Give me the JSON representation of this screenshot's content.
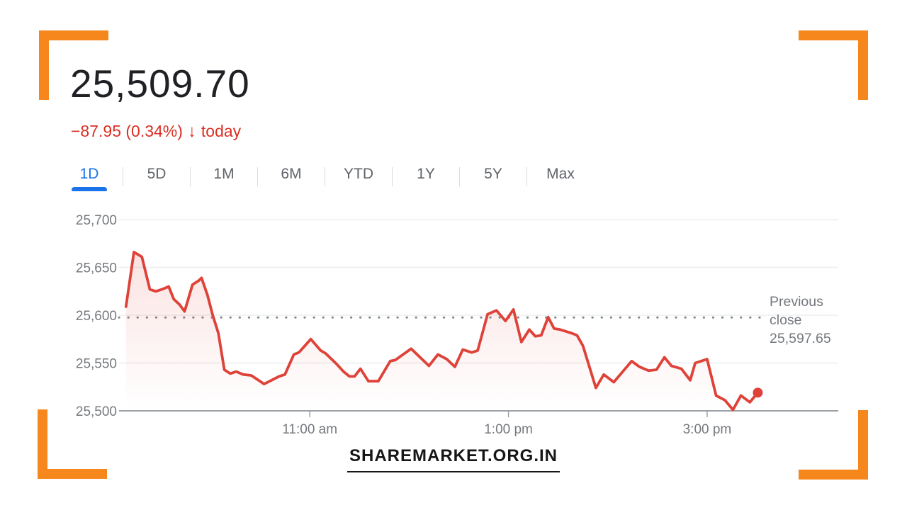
{
  "page": {
    "watermark": "SHAREMARKET.ORG.IN"
  },
  "colors": {
    "frame_orange": "#F6871D",
    "accent_blue": "#1a73e8",
    "negative_red": "#d93025",
    "line_red": "#de4238",
    "text_dark": "#202124",
    "text_gray": "#5f6368",
    "axis_label_gray": "#75797e",
    "grid_light": "#ecedef",
    "axis_line_gray": "#9aa0a6",
    "dotted_line_gray": "#85898d",
    "tab_separator": "#dadce0"
  },
  "quote": {
    "price": "25,509.70",
    "change": "−87.95 (0.34%)",
    "direction_icon": "↓",
    "change_period": "today"
  },
  "range_tabs": {
    "active": "1D",
    "items": [
      "1D",
      "5D",
      "1M",
      "6M",
      "YTD",
      "1Y",
      "5Y",
      "Max"
    ]
  },
  "chart_data": {
    "type": "line",
    "title": "Intraday price (1D)",
    "x_range_hours": [
      9.08,
      16.32
    ],
    "y_range": [
      25500,
      25700
    ],
    "grid": true,
    "legend": "none",
    "end_dot": true,
    "y_ticks": [
      {
        "value": 25700,
        "label": "25,700"
      },
      {
        "value": 25650,
        "label": "25,650"
      },
      {
        "value": 25600,
        "label": "25,600"
      },
      {
        "value": 25550,
        "label": "25,550"
      },
      {
        "value": 25500,
        "label": "25,500"
      }
    ],
    "x_ticks": [
      {
        "hour": 11,
        "label": "11:00 am"
      },
      {
        "hour": 13,
        "label": "1:00 pm"
      },
      {
        "hour": 15,
        "label": "3:00 pm"
      }
    ],
    "previous_close": {
      "value": 25597.65,
      "label_lines": [
        "Previous",
        "close",
        "25,597.65"
      ]
    },
    "series": [
      {
        "name": "price",
        "color": "#de4238",
        "points": [
          [
            9.15,
            25609
          ],
          [
            9.23,
            25666
          ],
          [
            9.31,
            25661
          ],
          [
            9.39,
            25627
          ],
          [
            9.45,
            25625
          ],
          [
            9.51,
            25627
          ],
          [
            9.58,
            25630
          ],
          [
            9.63,
            25617
          ],
          [
            9.69,
            25611
          ],
          [
            9.74,
            25604
          ],
          [
            9.82,
            25632
          ],
          [
            9.88,
            25636
          ],
          [
            9.91,
            25639
          ],
          [
            9.97,
            25621
          ],
          [
            10.02,
            25601
          ],
          [
            10.08,
            25581
          ],
          [
            10.14,
            25543
          ],
          [
            10.2,
            25539
          ],
          [
            10.26,
            25541
          ],
          [
            10.33,
            25538
          ],
          [
            10.41,
            25537
          ],
          [
            10.47,
            25533
          ],
          [
            10.54,
            25528
          ],
          [
            10.69,
            25536
          ],
          [
            10.75,
            25538
          ],
          [
            10.84,
            25559
          ],
          [
            10.89,
            25561
          ],
          [
            11.01,
            25575
          ],
          [
            11.11,
            25563
          ],
          [
            11.16,
            25560
          ],
          [
            11.27,
            25549
          ],
          [
            11.34,
            25541
          ],
          [
            11.4,
            25536
          ],
          [
            11.45,
            25536
          ],
          [
            11.51,
            25544
          ],
          [
            11.59,
            25531
          ],
          [
            11.69,
            25531
          ],
          [
            11.81,
            25552
          ],
          [
            11.86,
            25553
          ],
          [
            12.02,
            25565
          ],
          [
            12.09,
            25558
          ],
          [
            12.2,
            25547
          ],
          [
            12.29,
            25559
          ],
          [
            12.38,
            25554
          ],
          [
            12.46,
            25546
          ],
          [
            12.54,
            25564
          ],
          [
            12.63,
            25561
          ],
          [
            12.69,
            25563
          ],
          [
            12.79,
            25601
          ],
          [
            12.88,
            25605
          ],
          [
            12.97,
            25594
          ],
          [
            13.05,
            25606
          ],
          [
            13.13,
            25572
          ],
          [
            13.21,
            25585
          ],
          [
            13.27,
            25578
          ],
          [
            13.33,
            25579
          ],
          [
            13.4,
            25598
          ],
          [
            13.46,
            25586
          ],
          [
            13.52,
            25585
          ],
          [
            13.64,
            25581
          ],
          [
            13.69,
            25579
          ],
          [
            13.75,
            25568
          ],
          [
            13.88,
            25524
          ],
          [
            13.96,
            25538
          ],
          [
            14.06,
            25530
          ],
          [
            14.24,
            25552
          ],
          [
            14.32,
            25546
          ],
          [
            14.41,
            25542
          ],
          [
            14.49,
            25543
          ],
          [
            14.57,
            25556
          ],
          [
            14.64,
            25547
          ],
          [
            14.74,
            25544
          ],
          [
            14.83,
            25532
          ],
          [
            14.88,
            25550
          ],
          [
            15.0,
            25554
          ],
          [
            15.09,
            25516
          ],
          [
            15.18,
            25511
          ],
          [
            15.26,
            25501
          ],
          [
            15.34,
            25516
          ],
          [
            15.43,
            25509
          ],
          [
            15.51,
            25519
          ]
        ]
      }
    ]
  }
}
